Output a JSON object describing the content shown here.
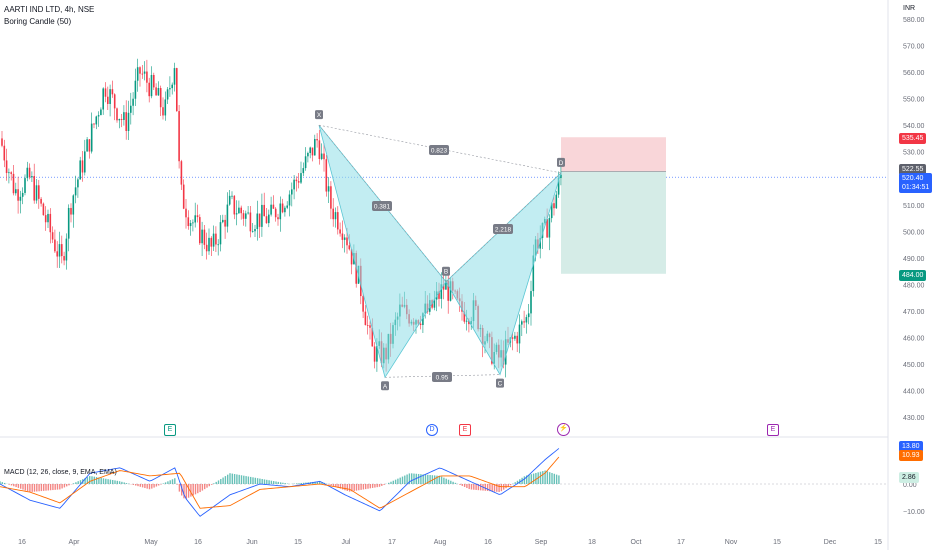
{
  "header": {
    "symbol": "AARTI IND LTD, 4h, NSE",
    "indicator": "Boring Candle (50)",
    "currency": "INR"
  },
  "macd_header": "MACD (12, 26, close, 9, EMA, EMA)",
  "price_axis": {
    "ticks": [
      "580.00",
      "570.00",
      "560.00",
      "550.00",
      "540.00",
      "530.00",
      "520.00",
      "510.00",
      "500.00",
      "490.00",
      "480.00",
      "470.00",
      "460.00",
      "450.00",
      "440.00",
      "430.00"
    ],
    "ticks_values": [
      580,
      570,
      560,
      550,
      540,
      530,
      520,
      510,
      500,
      490,
      480,
      470,
      460,
      450,
      440,
      430
    ]
  },
  "time_axis": {
    "labels": [
      "16",
      "Apr",
      "May",
      "16",
      "Jun",
      "15",
      "Jul",
      "17",
      "Aug",
      "16",
      "Sep",
      "18",
      "Oct",
      "17",
      "Nov",
      "15",
      "Dec",
      "15"
    ]
  },
  "badges": {
    "stop": "535.45",
    "entry": "522.55",
    "last": "520.40",
    "countdown": "01:34:51",
    "target": "484.00",
    "macd": "13.80",
    "signal": "10.93",
    "hist": "2.86"
  },
  "macd_axis": [
    "0.00",
    "−10.00"
  ],
  "pattern": {
    "points": [
      {
        "label": "X",
        "x_index": 0,
        "price": 540
      },
      {
        "label": "A",
        "x_index": 1,
        "price": 445
      },
      {
        "label": "B",
        "x_index": 2,
        "price": 481
      },
      {
        "label": "C",
        "x_index": 3,
        "price": 446
      },
      {
        "label": "D",
        "x_index": 4,
        "price": 522
      }
    ],
    "ratios": {
      "xd": "0.823",
      "xb": "0.381",
      "bd": "2.218",
      "ac": "0.95"
    }
  },
  "events": [
    {
      "label": "E",
      "kind": "earnings",
      "color": "#089981"
    },
    {
      "label": "D",
      "kind": "dividend",
      "color": "#2962ff"
    },
    {
      "label": "E",
      "kind": "earnings",
      "color": "#f23645"
    },
    {
      "label": "⚡",
      "kind": "split",
      "color": "#9c27b0"
    },
    {
      "label": "E",
      "kind": "earnings",
      "color": "#9c27b0"
    }
  ],
  "colors": {
    "up": "#089981",
    "down": "#f23645",
    "pattern_fill": "#8fdfe8",
    "pattern_line": "#5bc7d4",
    "stop_zone": "#f9d6d9",
    "target_zone": "#d5ece7",
    "macd_line": "#2962ff",
    "signal_line": "#ff6d00"
  }
}
